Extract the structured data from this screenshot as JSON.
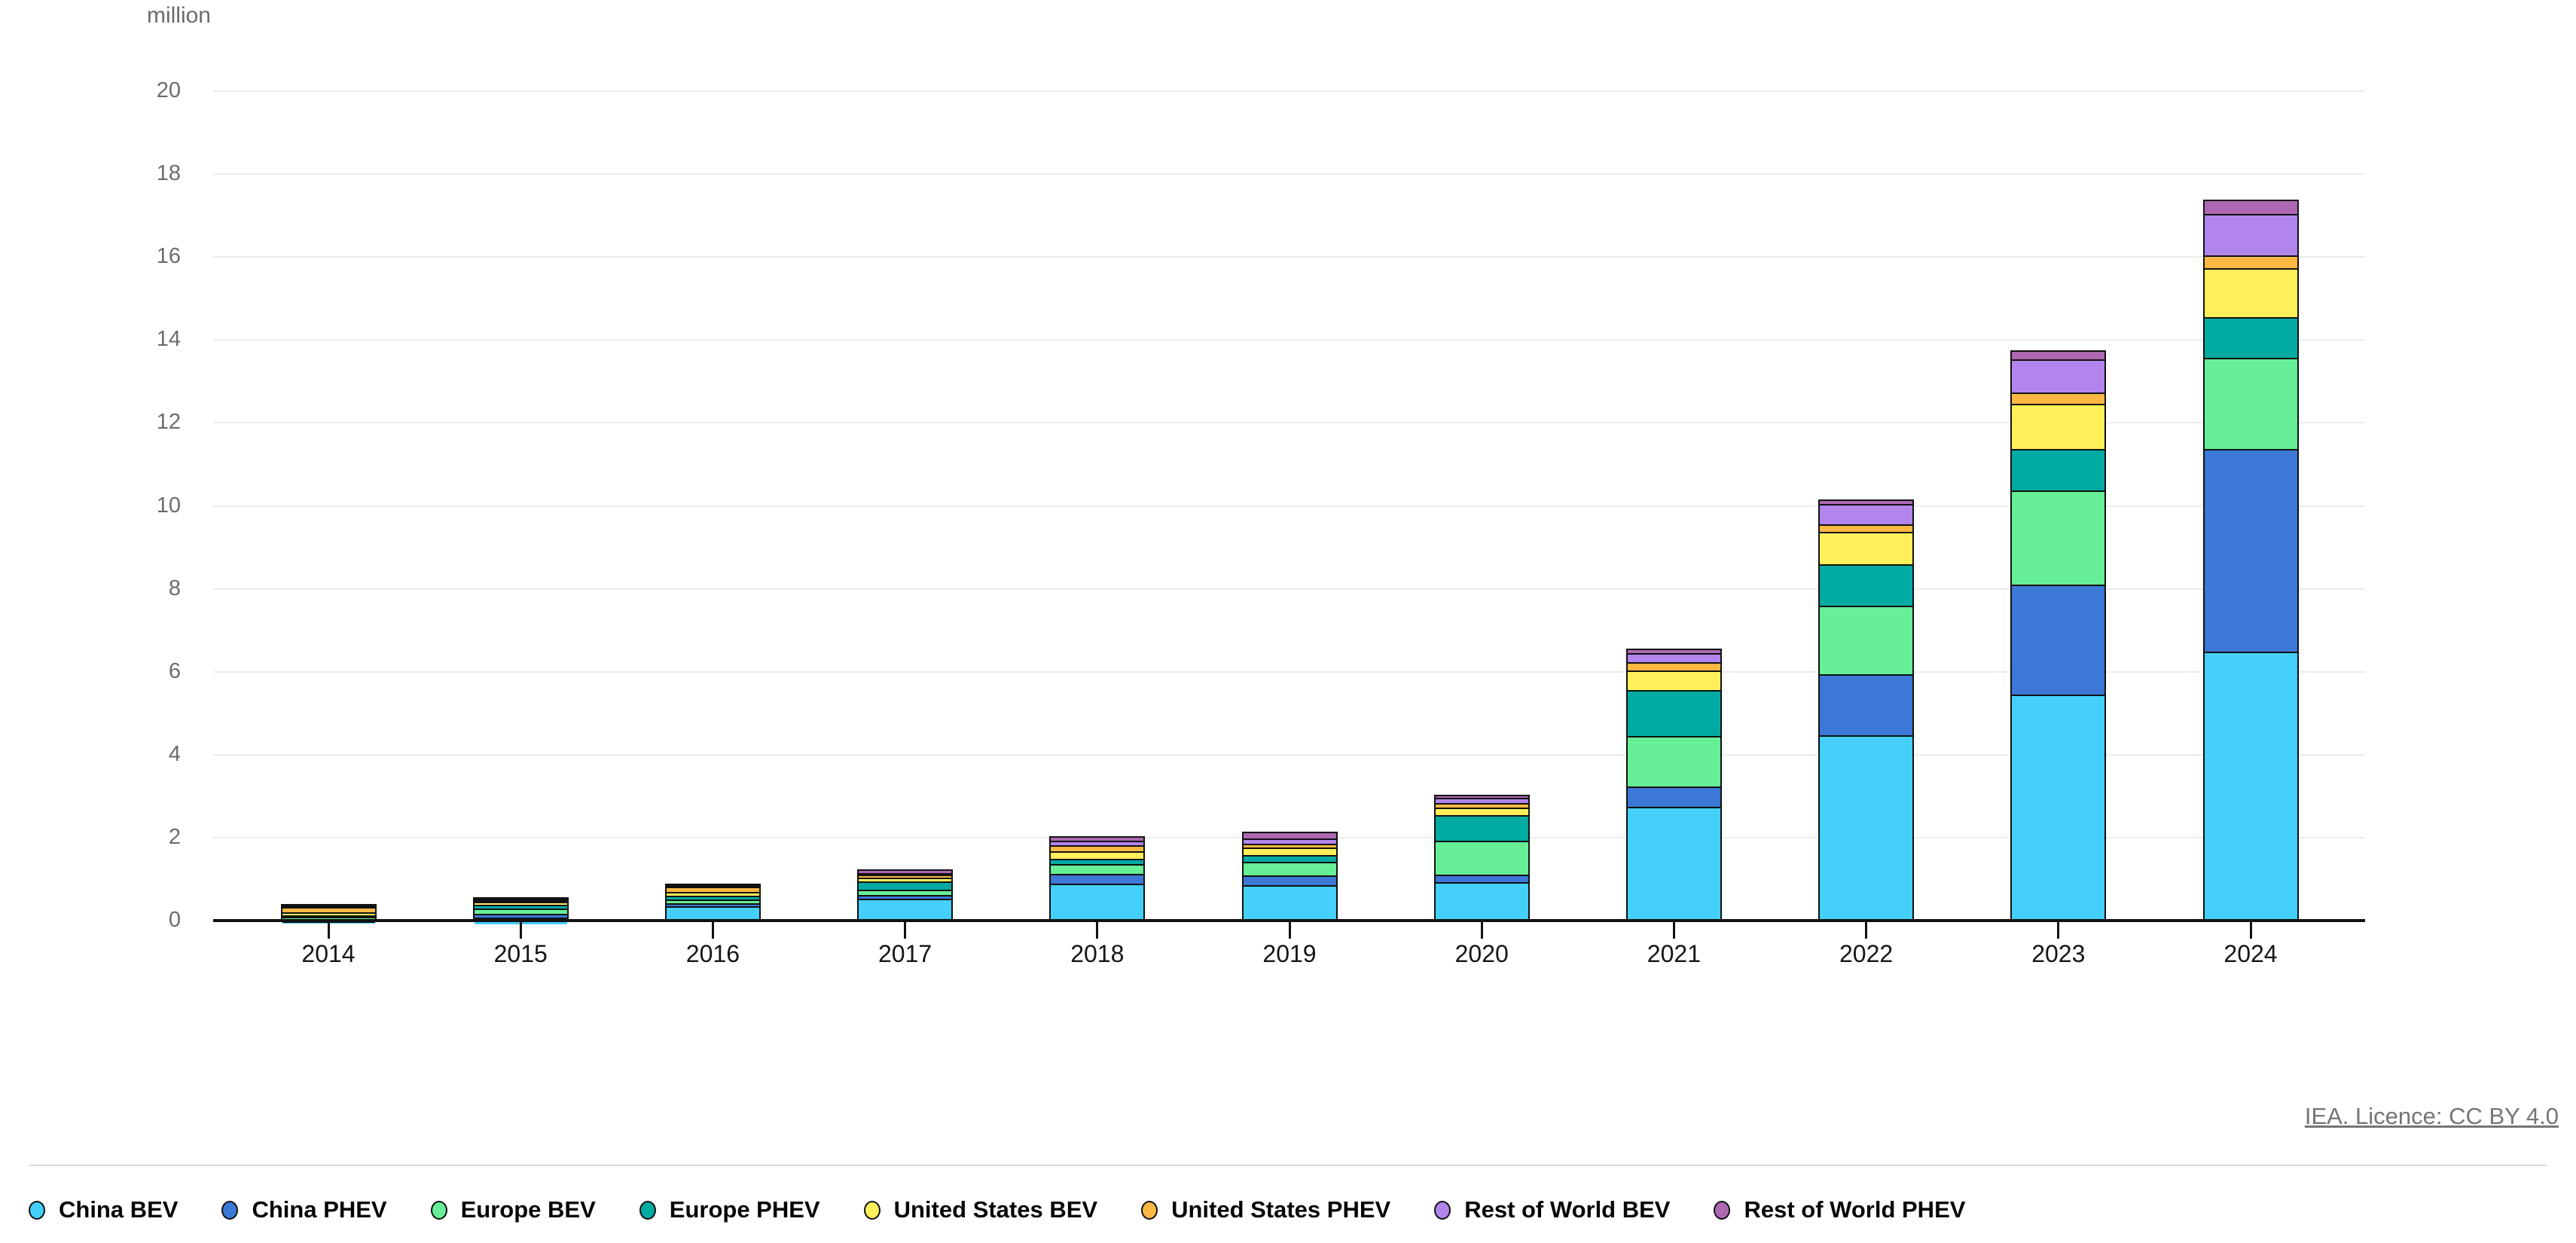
{
  "unit_label": "million",
  "source_link_label": "IEA. Licence: CC BY 4.0",
  "accent_colors": {
    "grid": "#ececec",
    "axis": "#111111",
    "tick_text": "#6a6c6e",
    "category_text": "#151515",
    "link_text": "#757575"
  },
  "chart_data": {
    "type": "bar",
    "stacked": true,
    "title": "",
    "xlabel": "",
    "ylabel": "million",
    "ylim": [
      0,
      20
    ],
    "ytick_step": 2,
    "yticklabels": [
      "0",
      "2",
      "4",
      "6",
      "8",
      "10",
      "12",
      "14",
      "16",
      "18",
      "20"
    ],
    "grid": true,
    "legend_position": "bottom",
    "categories": [
      "2014",
      "2015",
      "2016",
      "2017",
      "2018",
      "2019",
      "2020",
      "2021",
      "2022",
      "2023",
      "2024"
    ],
    "series": [
      {
        "name": "China BEV",
        "color": "#44d0fa",
        "values": [
          0.02,
          0.13,
          0.34,
          0.5,
          0.85,
          0.82,
          0.89,
          2.7,
          4.44,
          5.41,
          6.45
        ]
      },
      {
        "name": "China PHEV",
        "color": "#3c78d6",
        "values": [
          0.01,
          0.09,
          0.07,
          0.09,
          0.24,
          0.23,
          0.18,
          0.5,
          1.47,
          2.65,
          4.89
        ]
      },
      {
        "name": "Europe BEV",
        "color": "#66ef97",
        "values": [
          0.08,
          0.12,
          0.1,
          0.12,
          0.23,
          0.33,
          0.82,
          1.22,
          1.64,
          2.27,
          2.19
        ]
      },
      {
        "name": "Europe PHEV",
        "color": "#02aba1",
        "values": [
          0.03,
          0.09,
          0.09,
          0.2,
          0.14,
          0.16,
          0.62,
          1.1,
          1.0,
          1.0,
          0.98
        ]
      },
      {
        "name": "United States BEV",
        "color": "#fdf05b",
        "values": [
          0.07,
          0.08,
          0.08,
          0.09,
          0.18,
          0.19,
          0.18,
          0.48,
          0.78,
          1.09,
          1.18
        ]
      },
      {
        "name": "United States PHEV",
        "color": "#fcb843",
        "values": [
          0.12,
          0.01,
          0.13,
          0.08,
          0.14,
          0.08,
          0.1,
          0.2,
          0.19,
          0.28,
          0.32
        ]
      },
      {
        "name": "Rest of World BEV",
        "color": "#b285ed",
        "values": [
          0.015,
          0.005,
          0.02,
          0.03,
          0.1,
          0.14,
          0.13,
          0.21,
          0.49,
          0.8,
          1.0
        ]
      },
      {
        "name": "Rest of World PHEV",
        "color": "#ae68b2",
        "values": [
          0.015,
          0.005,
          0.02,
          0.09,
          0.12,
          0.16,
          0.08,
          0.11,
          0.11,
          0.21,
          0.33
        ]
      }
    ]
  }
}
